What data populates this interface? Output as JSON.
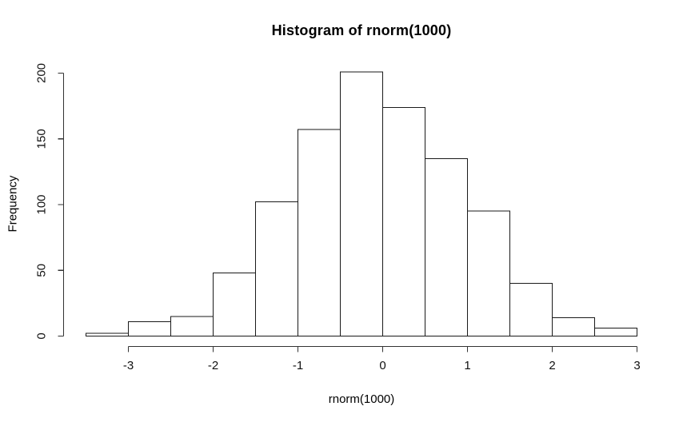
{
  "chart_data": {
    "type": "bar",
    "style": "r-base-histogram",
    "title": "Histogram of rnorm(1000)",
    "xlabel": "rnorm(1000)",
    "ylabel": "Frequency",
    "breaks": [
      -3.5,
      -3,
      -2.5,
      -2,
      -1.5,
      -1,
      -0.5,
      0,
      0.5,
      1,
      1.5,
      2,
      2.5,
      3
    ],
    "values": [
      2,
      11,
      15,
      48,
      102,
      157,
      201,
      174,
      135,
      95,
      40,
      14,
      6
    ],
    "total_count": 1000,
    "x_ticks": [
      -3,
      -2,
      -1,
      0,
      1,
      2,
      3
    ],
    "y_ticks": [
      0,
      50,
      100,
      150,
      200
    ],
    "xlim": [
      -3.5,
      3
    ],
    "ylim": [
      0,
      201
    ],
    "grid": false,
    "legend": "none",
    "bar_fill": "#ffffff",
    "bar_stroke": "#1a1a1a",
    "background": "#ffffff",
    "text_color": "#000000"
  }
}
